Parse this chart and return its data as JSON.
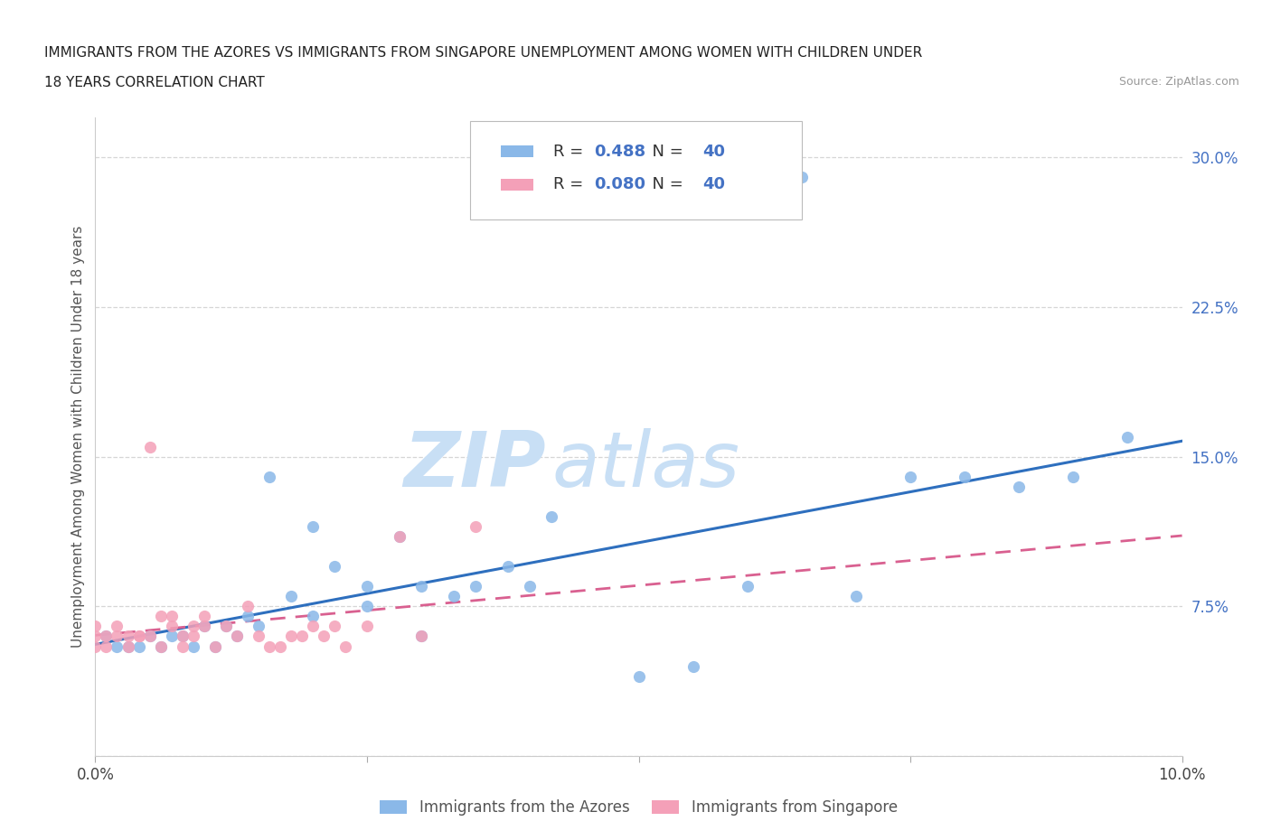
{
  "title_line1": "IMMIGRANTS FROM THE AZORES VS IMMIGRANTS FROM SINGAPORE UNEMPLOYMENT AMONG WOMEN WITH CHILDREN UNDER",
  "title_line2": "18 YEARS CORRELATION CHART",
  "source": "Source: ZipAtlas.com",
  "ylabel": "Unemployment Among Women with Children Under 18 years",
  "legend_label1": "Immigrants from the Azores",
  "legend_label2": "Immigrants from Singapore",
  "r1": "0.488",
  "r2": "0.080",
  "n1": "40",
  "n2": "40",
  "xlim": [
    0.0,
    0.1
  ],
  "ylim": [
    0.0,
    0.32
  ],
  "xticks": [
    0.0,
    0.025,
    0.05,
    0.075,
    0.1
  ],
  "yticks": [
    0.0,
    0.075,
    0.15,
    0.225,
    0.3
  ],
  "color_azores": "#8ab8e8",
  "color_singapore": "#f4a0b8",
  "trendline_color_azores": "#2e6fbe",
  "trendline_color_singapore": "#d96090",
  "watermark_zip": "ZIP",
  "watermark_atlas": "atlas",
  "watermark_color": "#c8dff5",
  "background_color": "#ffffff",
  "azores_x": [
    0.001,
    0.002,
    0.003,
    0.004,
    0.005,
    0.006,
    0.007,
    0.008,
    0.009,
    0.01,
    0.011,
    0.012,
    0.013,
    0.014,
    0.015,
    0.016,
    0.018,
    0.02,
    0.022,
    0.025,
    0.028,
    0.03,
    0.033,
    0.035,
    0.038,
    0.04,
    0.042,
    0.05,
    0.055,
    0.06,
    0.065,
    0.07,
    0.075,
    0.08,
    0.085,
    0.09,
    0.095,
    0.02,
    0.025,
    0.03
  ],
  "azores_y": [
    0.06,
    0.055,
    0.055,
    0.055,
    0.06,
    0.055,
    0.06,
    0.06,
    0.055,
    0.065,
    0.055,
    0.065,
    0.06,
    0.07,
    0.065,
    0.14,
    0.08,
    0.07,
    0.095,
    0.075,
    0.11,
    0.085,
    0.08,
    0.085,
    0.095,
    0.085,
    0.12,
    0.04,
    0.045,
    0.085,
    0.29,
    0.08,
    0.14,
    0.14,
    0.135,
    0.14,
    0.16,
    0.115,
    0.085,
    0.06
  ],
  "singapore_x": [
    0.0,
    0.0,
    0.0,
    0.001,
    0.001,
    0.002,
    0.002,
    0.003,
    0.003,
    0.004,
    0.004,
    0.005,
    0.005,
    0.006,
    0.006,
    0.007,
    0.007,
    0.008,
    0.008,
    0.009,
    0.009,
    0.01,
    0.01,
    0.011,
    0.012,
    0.013,
    0.014,
    0.015,
    0.016,
    0.017,
    0.018,
    0.019,
    0.02,
    0.021,
    0.022,
    0.023,
    0.025,
    0.028,
    0.03,
    0.035
  ],
  "singapore_y": [
    0.055,
    0.06,
    0.065,
    0.055,
    0.06,
    0.06,
    0.065,
    0.06,
    0.055,
    0.06,
    0.06,
    0.155,
    0.06,
    0.07,
    0.055,
    0.07,
    0.065,
    0.06,
    0.055,
    0.06,
    0.065,
    0.065,
    0.07,
    0.055,
    0.065,
    0.06,
    0.075,
    0.06,
    0.055,
    0.055,
    0.06,
    0.06,
    0.065,
    0.06,
    0.065,
    0.055,
    0.065,
    0.11,
    0.06,
    0.115
  ]
}
